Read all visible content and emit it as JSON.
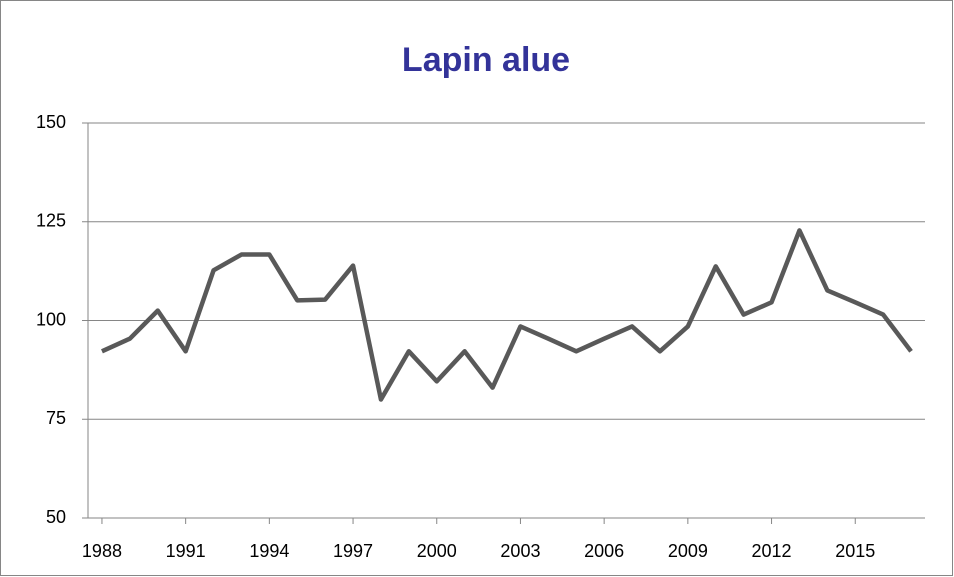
{
  "chart_data": {
    "type": "line",
    "title": "Lapin alue",
    "x": [
      1988,
      1989,
      1990,
      1991,
      1992,
      1993,
      1994,
      1995,
      1996,
      1997,
      1998,
      1999,
      2000,
      2001,
      2002,
      2003,
      2004,
      2005,
      2006,
      2007,
      2008,
      2009,
      2010,
      2011,
      2012,
      2013,
      2014,
      2015,
      2016,
      2017
    ],
    "series": [
      {
        "name": "Lapin alue",
        "color": "#595959",
        "values": [
          92.2,
          95.4,
          102.5,
          92.2,
          112.7,
          116.7,
          116.7,
          105.1,
          105.3,
          113.9,
          80,
          92.2,
          84.6,
          92.2,
          83,
          98.5,
          95.4,
          92.2,
          95.4,
          98.5,
          92.2,
          98.5,
          113.7,
          101.5,
          104.6,
          122.8,
          107.6,
          104.6,
          101.5,
          92.2
        ]
      }
    ],
    "xlim": [
      1987.5,
      2017.5
    ],
    "xticks": [
      1988,
      1991,
      1994,
      1997,
      2000,
      2003,
      2006,
      2009,
      2012,
      2015
    ],
    "ylim": [
      50,
      150
    ],
    "yticks": [
      50,
      75,
      100,
      125,
      150
    ],
    "grid": true
  }
}
